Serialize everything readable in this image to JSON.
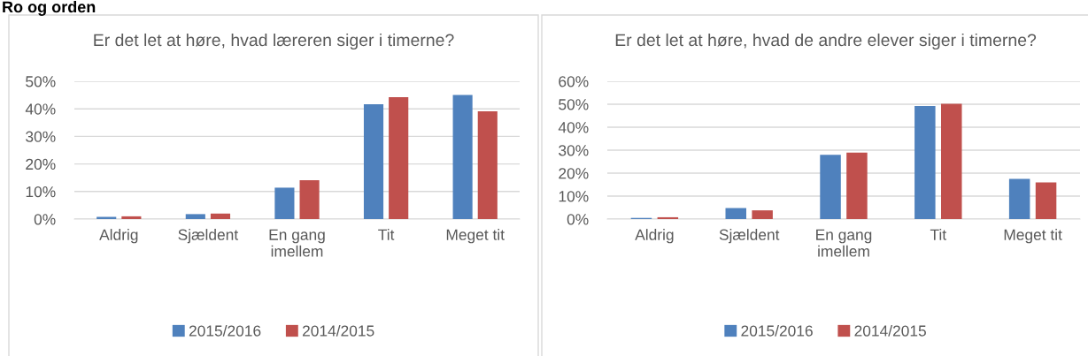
{
  "chart_data": [
    {
      "type": "bar",
      "title": "Er det let at høre, hvad læreren siger i timerne?",
      "annotations": [
        "Ro og orden"
      ],
      "categories": [
        "Aldrig",
        "Sjældent",
        "En gang imellem",
        "Tit",
        "Meget tit"
      ],
      "series": [
        {
          "name": "2015/2016",
          "color": "#4f81bd",
          "values": [
            0.8,
            1.8,
            11.4,
            41.7,
            45.0
          ]
        },
        {
          "name": "2014/2015",
          "color": "#c0504d",
          "values": [
            1.0,
            2.0,
            14.1,
            44.2,
            39.1
          ]
        }
      ],
      "ylim": [
        0,
        50
      ],
      "yticks": [
        {
          "value": 0,
          "label": "0%"
        },
        {
          "value": 10,
          "label": "10%"
        },
        {
          "value": 20,
          "label": "20%"
        },
        {
          "value": 30,
          "label": "30%"
        },
        {
          "value": 40,
          "label": "40%"
        },
        {
          "value": 50,
          "label": "50%"
        }
      ],
      "grid": "y",
      "legend": "bottom"
    },
    {
      "type": "bar",
      "title": "Er det let at høre, hvad de andre elever siger i timerne?",
      "categories": [
        "Aldrig",
        "Sjældent",
        "En gang imellem",
        "Tit",
        "Meget tit"
      ],
      "series": [
        {
          "name": "2015/2016",
          "color": "#4f81bd",
          "values": [
            0.5,
            4.8,
            28.0,
            49.2,
            17.5
          ]
        },
        {
          "name": "2014/2015",
          "color": "#c0504d",
          "values": [
            0.8,
            3.8,
            28.9,
            50.2,
            16.0
          ]
        }
      ],
      "ylim": [
        0,
        60
      ],
      "yticks": [
        {
          "value": 0,
          "label": "0%"
        },
        {
          "value": 10,
          "label": "10%"
        },
        {
          "value": 20,
          "label": "20%"
        },
        {
          "value": 30,
          "label": "30%"
        },
        {
          "value": 40,
          "label": "40%"
        },
        {
          "value": 50,
          "label": "50%"
        },
        {
          "value": 60,
          "label": "60%"
        }
      ],
      "grid": "y",
      "legend": "bottom"
    }
  ]
}
